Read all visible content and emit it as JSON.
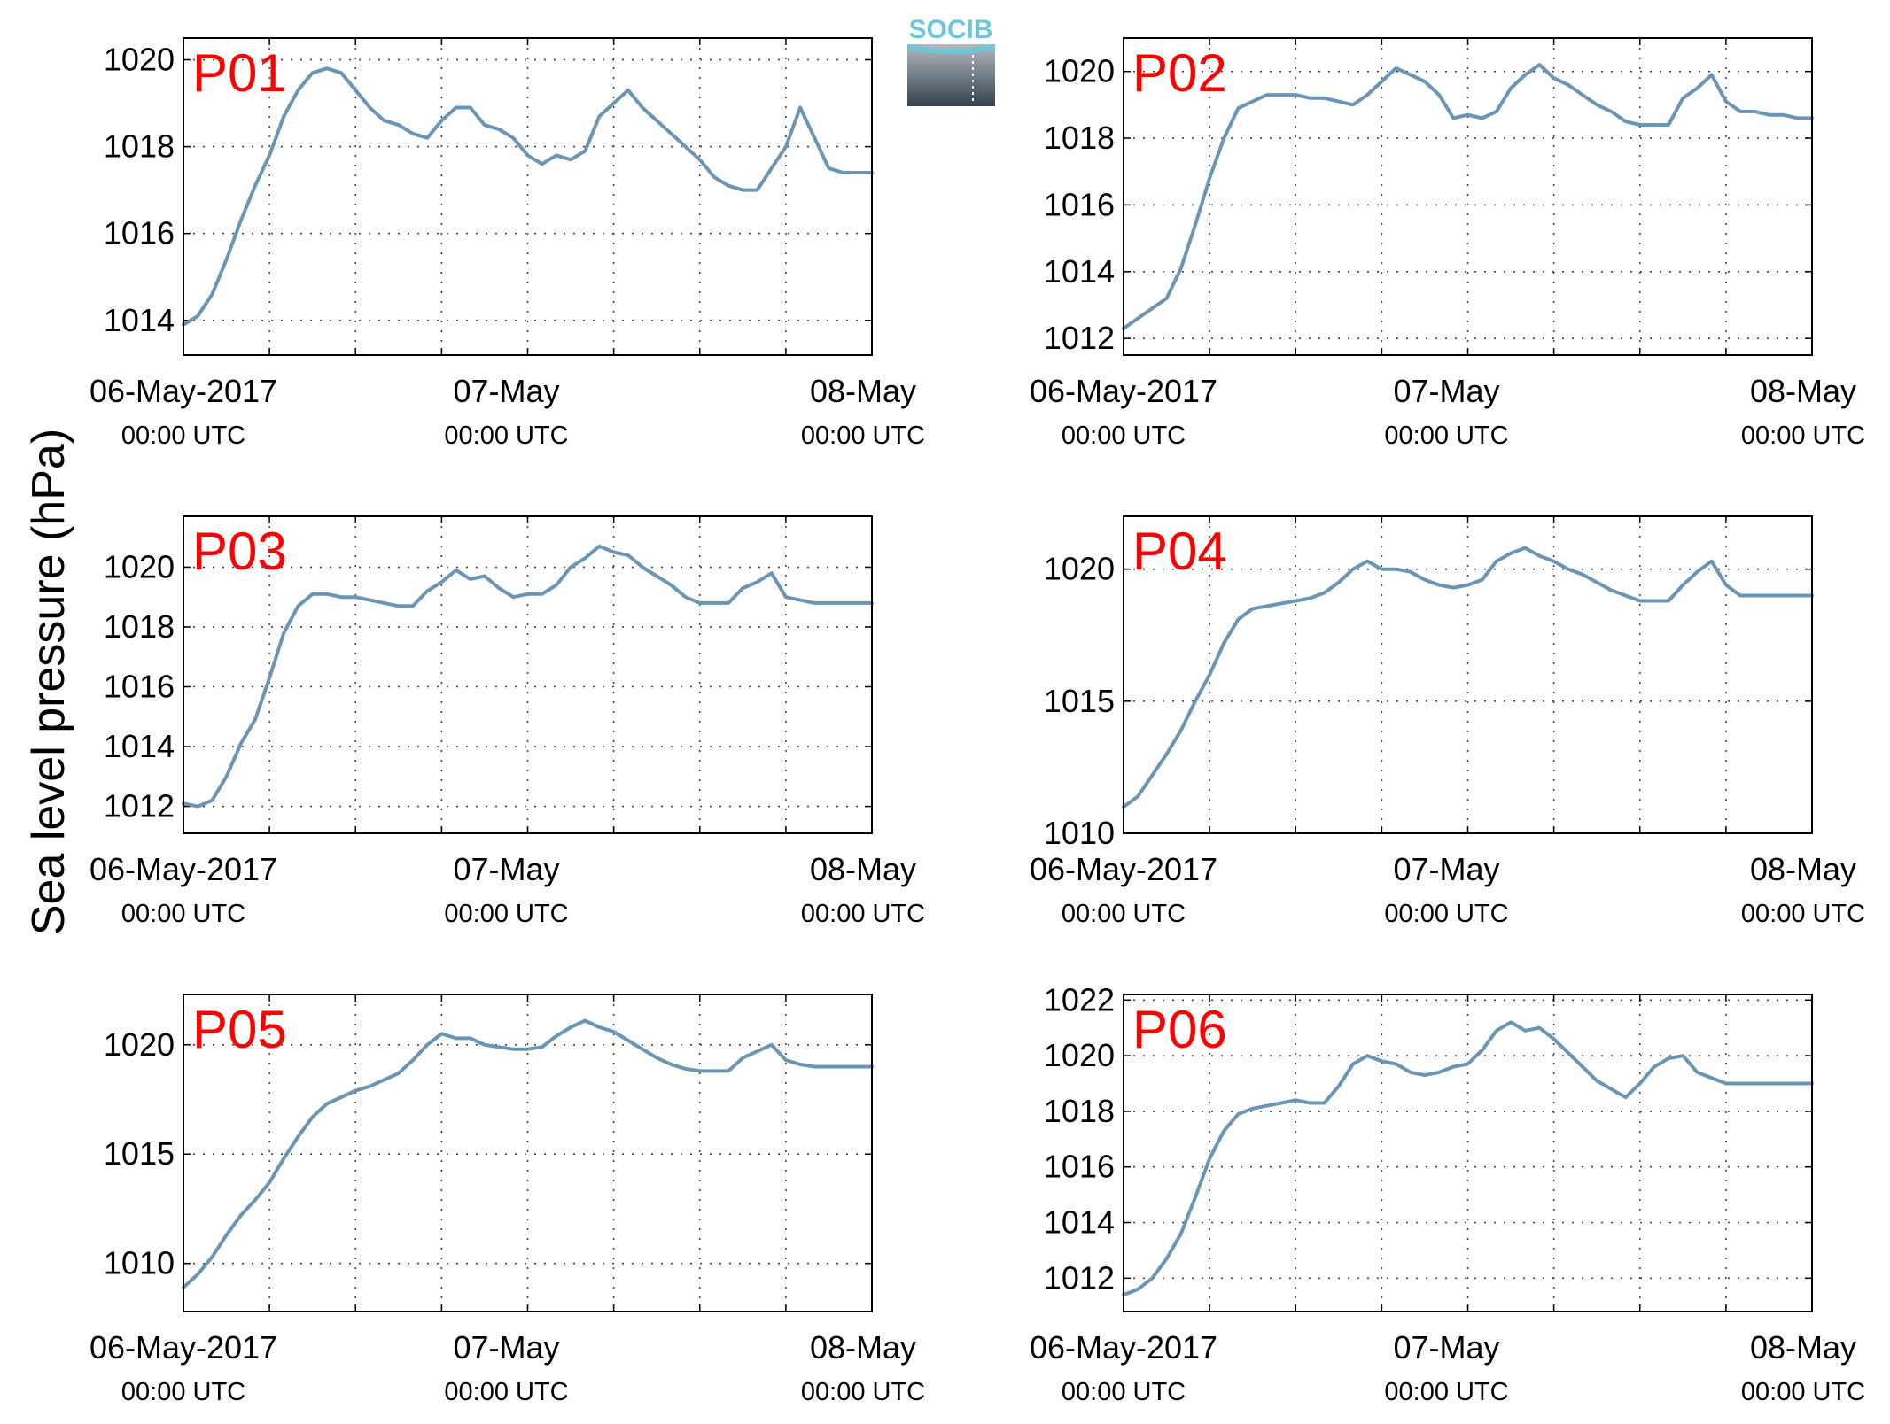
{
  "figure": {
    "ylabel": "Sea level pressure (hPa)",
    "logo_text": "SOCIB",
    "line_color": "#6a95b5",
    "title_color": "#ff0000",
    "grid": true
  },
  "chart_data": [
    {
      "type": "line",
      "title": "P01",
      "xlim": [
        "2017-05-06 00:00",
        "2017-05-08 00:00"
      ],
      "ylim": [
        1013.2,
        1020.5
      ],
      "yticks": [
        1014,
        1016,
        1018,
        1020
      ],
      "xticks": [
        {
          "date": "06-May-2017",
          "time": "00:00 UTC"
        },
        {
          "date": "07-May",
          "time": "00:00 UTC"
        },
        {
          "date": "08-May",
          "time": "00:00 UTC"
        }
      ],
      "series": [
        {
          "x_hours": [
            0,
            1,
            2,
            3,
            4,
            5,
            6,
            7,
            8,
            9,
            10,
            11,
            12,
            13,
            14,
            15,
            16,
            17,
            18,
            19,
            20,
            21,
            22,
            23,
            24,
            25,
            26,
            27,
            28,
            29,
            30,
            31,
            32,
            33,
            34,
            35,
            36,
            37,
            38,
            39,
            40,
            41,
            42,
            43,
            44,
            45,
            46,
            47,
            48
          ],
          "values": [
            1013.9,
            1014.1,
            1014.6,
            1015.4,
            1016.3,
            1017.1,
            1017.8,
            1018.7,
            1019.3,
            1019.7,
            1019.8,
            1019.7,
            1019.3,
            1018.9,
            1018.6,
            1018.5,
            1018.3,
            1018.2,
            1018.6,
            1018.9,
            1018.9,
            1018.5,
            1018.4,
            1018.2,
            1017.8,
            1017.6,
            1017.8,
            1017.7,
            1017.9,
            1018.7,
            1019.0,
            1019.3,
            1018.9,
            1018.6,
            1018.3,
            1018.0,
            1017.7,
            1017.3,
            1017.1,
            1017.0,
            1017.0,
            1017.5,
            1018.0,
            1018.9,
            1018.2,
            1017.5,
            1017.4,
            1017.4,
            1017.4
          ],
          "x_end_hours": 48
        }
      ]
    },
    {
      "type": "line",
      "title": "P02",
      "xlim": [
        "2017-05-06 00:00",
        "2017-05-08 00:00"
      ],
      "ylim": [
        1011.5,
        1021
      ],
      "yticks": [
        1012,
        1014,
        1016,
        1018,
        1020
      ],
      "xticks": [
        {
          "date": "06-May-2017",
          "time": "00:00 UTC"
        },
        {
          "date": "07-May",
          "time": "00:00 UTC"
        },
        {
          "date": "08-May",
          "time": "00:00 UTC"
        }
      ],
      "series": [
        {
          "x_hours": [
            0,
            1,
            2,
            3,
            4,
            5,
            6,
            7,
            8,
            9,
            10,
            11,
            12,
            13,
            14,
            15,
            16,
            17,
            18,
            19,
            20,
            21,
            22,
            23,
            24,
            25,
            26,
            27,
            28,
            29,
            30,
            31,
            32,
            33,
            34,
            35,
            36,
            37,
            38,
            39,
            40,
            41,
            42,
            43,
            44,
            45,
            46,
            47,
            48
          ],
          "values": [
            1012.3,
            1012.6,
            1012.9,
            1013.2,
            1014.1,
            1015.4,
            1016.8,
            1018.0,
            1018.9,
            1019.1,
            1019.3,
            1019.3,
            1019.3,
            1019.2,
            1019.2,
            1019.1,
            1019.0,
            1019.3,
            1019.7,
            1020.1,
            1019.9,
            1019.7,
            1019.3,
            1018.6,
            1018.7,
            1018.6,
            1018.8,
            1019.5,
            1019.9,
            1020.2,
            1019.8,
            1019.6,
            1019.3,
            1019.0,
            1018.8,
            1018.5,
            1018.4,
            1018.4,
            1018.4,
            1019.2,
            1019.5,
            1019.9,
            1019.1,
            1018.8,
            1018.8,
            1018.7,
            1018.7,
            1018.6,
            1018.6
          ]
        }
      ]
    },
    {
      "type": "line",
      "title": "P03",
      "xlim": [
        "2017-05-06 00:00",
        "2017-05-08 00:00"
      ],
      "ylim": [
        1011.1,
        1021.7
      ],
      "yticks": [
        1012,
        1014,
        1016,
        1018,
        1020
      ],
      "xticks": [
        {
          "date": "06-May-2017",
          "time": "00:00 UTC"
        },
        {
          "date": "07-May",
          "time": "00:00 UTC"
        },
        {
          "date": "08-May",
          "time": "00:00 UTC"
        }
      ],
      "series": [
        {
          "x_hours": [
            0,
            1,
            2,
            3,
            4,
            5,
            6,
            7,
            8,
            9,
            10,
            11,
            12,
            13,
            14,
            15,
            16,
            17,
            18,
            19,
            20,
            21,
            22,
            23,
            24,
            25,
            26,
            27,
            28,
            29,
            30,
            31,
            32,
            33,
            34,
            35,
            36,
            37,
            38,
            39,
            40,
            41,
            42,
            43,
            44,
            45,
            46,
            47,
            48
          ],
          "values": [
            1012.1,
            1012.0,
            1012.2,
            1013.0,
            1014.1,
            1014.9,
            1016.3,
            1017.8,
            1018.7,
            1019.1,
            1019.1,
            1019.0,
            1019.0,
            1018.9,
            1018.8,
            1018.7,
            1018.7,
            1019.2,
            1019.5,
            1019.9,
            1019.6,
            1019.7,
            1019.3,
            1019.0,
            1019.1,
            1019.1,
            1019.4,
            1020.0,
            1020.3,
            1020.7,
            1020.5,
            1020.4,
            1020.0,
            1019.7,
            1019.4,
            1019.0,
            1018.8,
            1018.8,
            1018.8,
            1019.3,
            1019.5,
            1019.8,
            1019.0,
            1018.9,
            1018.8,
            1018.8,
            1018.8,
            1018.8,
            1018.8
          ]
        }
      ]
    },
    {
      "type": "line",
      "title": "P04",
      "xlim": [
        "2017-05-06 00:00",
        "2017-05-08 00:00"
      ],
      "ylim": [
        1010,
        1022
      ],
      "yticks": [
        1010,
        1015,
        1020
      ],
      "xticks": [
        {
          "date": "06-May-2017",
          "time": "00:00 UTC"
        },
        {
          "date": "07-May",
          "time": "00:00 UTC"
        },
        {
          "date": "08-May",
          "time": "00:00 UTC"
        }
      ],
      "series": [
        {
          "x_hours": [
            0,
            1,
            2,
            3,
            4,
            5,
            6,
            7,
            8,
            9,
            10,
            11,
            12,
            13,
            14,
            15,
            16,
            17,
            18,
            19,
            20,
            21,
            22,
            23,
            24,
            25,
            26,
            27,
            28,
            29,
            30,
            31,
            32,
            33,
            34,
            35,
            36,
            37,
            38,
            39,
            40,
            41,
            42,
            43,
            44,
            45,
            46,
            47,
            48
          ],
          "values": [
            1011.0,
            1011.4,
            1012.2,
            1013.0,
            1013.9,
            1015.0,
            1016.0,
            1017.2,
            1018.1,
            1018.5,
            1018.6,
            1018.7,
            1018.8,
            1018.9,
            1019.1,
            1019.5,
            1020.0,
            1020.3,
            1020.0,
            1020.0,
            1019.9,
            1019.6,
            1019.4,
            1019.3,
            1019.4,
            1019.6,
            1020.3,
            1020.6,
            1020.8,
            1020.5,
            1020.3,
            1020.0,
            1019.8,
            1019.5,
            1019.2,
            1019.0,
            1018.8,
            1018.8,
            1018.8,
            1019.4,
            1019.9,
            1020.3,
            1019.4,
            1019.0,
            1019.0,
            1019.0,
            1019.0,
            1019.0,
            1019.0
          ]
        }
      ]
    },
    {
      "type": "line",
      "title": "P05",
      "xlim": [
        "2017-05-06 00:00",
        "2017-05-08 00:00"
      ],
      "ylim": [
        1007.8,
        1022.3
      ],
      "yticks": [
        1010,
        1015,
        1020
      ],
      "xticks": [
        {
          "date": "06-May-2017",
          "time": "00:00 UTC"
        },
        {
          "date": "07-May",
          "time": "00:00 UTC"
        },
        {
          "date": "08-May",
          "time": "00:00 UTC"
        }
      ],
      "series": [
        {
          "x_hours": [
            0,
            1,
            2,
            3,
            4,
            5,
            6,
            7,
            8,
            9,
            10,
            11,
            12,
            13,
            14,
            15,
            16,
            17,
            18,
            19,
            20,
            21,
            22,
            23,
            24,
            25,
            26,
            27,
            28,
            29,
            30,
            31,
            32,
            33,
            34,
            35,
            36,
            37,
            38,
            39,
            40,
            41,
            42,
            43,
            44,
            45,
            46,
            47,
            48
          ],
          "values": [
            1008.9,
            1009.5,
            1010.3,
            1011.3,
            1012.2,
            1012.9,
            1013.7,
            1014.8,
            1015.8,
            1016.7,
            1017.3,
            1017.6,
            1017.9,
            1018.1,
            1018.4,
            1018.7,
            1019.3,
            1020.0,
            1020.5,
            1020.3,
            1020.3,
            1020.0,
            1019.9,
            1019.8,
            1019.8,
            1019.9,
            1020.4,
            1020.8,
            1021.1,
            1020.8,
            1020.6,
            1020.2,
            1019.8,
            1019.4,
            1019.1,
            1018.9,
            1018.8,
            1018.8,
            1018.8,
            1019.4,
            1019.7,
            1020.0,
            1019.3,
            1019.1,
            1019.0,
            1019.0,
            1019.0,
            1019.0,
            1019.0
          ]
        }
      ]
    },
    {
      "type": "line",
      "title": "P06",
      "xlim": [
        "2017-05-06 00:00",
        "2017-05-08 00:00"
      ],
      "ylim": [
        1010.8,
        1022.2
      ],
      "yticks": [
        1012,
        1014,
        1016,
        1018,
        1020,
        1022
      ],
      "xticks": [
        {
          "date": "06-May-2017",
          "time": "00:00 UTC"
        },
        {
          "date": "07-May",
          "time": "00:00 UTC"
        },
        {
          "date": "08-May",
          "time": "00:00 UTC"
        }
      ],
      "series": [
        {
          "x_hours": [
            0,
            1,
            2,
            3,
            4,
            5,
            6,
            7,
            8,
            9,
            10,
            11,
            12,
            13,
            14,
            15,
            16,
            17,
            18,
            19,
            20,
            21,
            22,
            23,
            24,
            25,
            26,
            27,
            28,
            29,
            30,
            31,
            32,
            33,
            34,
            35,
            36,
            37,
            38,
            39,
            40,
            41,
            42,
            43,
            44,
            45,
            46,
            47,
            48
          ],
          "values": [
            1011.4,
            1011.6,
            1012.0,
            1012.7,
            1013.6,
            1014.9,
            1016.3,
            1017.3,
            1017.9,
            1018.1,
            1018.2,
            1018.3,
            1018.4,
            1018.3,
            1018.3,
            1018.9,
            1019.7,
            1020.0,
            1019.8,
            1019.7,
            1019.4,
            1019.3,
            1019.4,
            1019.6,
            1019.7,
            1020.2,
            1020.9,
            1021.2,
            1020.9,
            1021.0,
            1020.6,
            1020.1,
            1019.6,
            1019.1,
            1018.8,
            1018.5,
            1019.0,
            1019.6,
            1019.9,
            1020.0,
            1019.4,
            1019.2,
            1019.0,
            1019.0,
            1019.0,
            1019.0,
            1019.0,
            1019.0,
            1019.0
          ]
        }
      ]
    }
  ]
}
